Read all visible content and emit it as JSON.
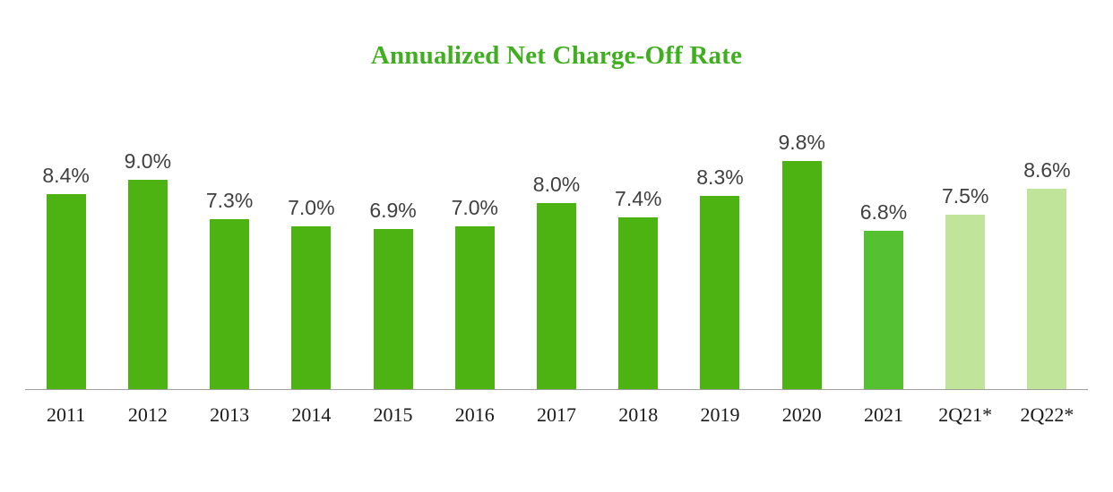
{
  "chart_data": {
    "type": "bar",
    "title": "Annualized Net Charge-Off Rate",
    "title_color": "#3fae1f",
    "xlabel": "",
    "ylabel": "",
    "ylim": [
      0,
      10
    ],
    "grid": false,
    "legend": "none",
    "categories": [
      "2011",
      "2012",
      "2013",
      "2014",
      "2015",
      "2016",
      "2017",
      "2018",
      "2019",
      "2020",
      "2021",
      "2Q21*",
      "2Q22*"
    ],
    "values": [
      8.4,
      9.0,
      7.3,
      7.0,
      6.9,
      7.0,
      8.0,
      7.4,
      8.3,
      9.8,
      6.8,
      7.5,
      8.6
    ],
    "points": [
      {
        "category": "2011",
        "value": 8.4,
        "label": "8.4%",
        "color": "#4db312"
      },
      {
        "category": "2012",
        "value": 9.0,
        "label": "9.0%",
        "color": "#4db312"
      },
      {
        "category": "2013",
        "value": 7.3,
        "label": "7.3%",
        "color": "#4db312"
      },
      {
        "category": "2014",
        "value": 7.0,
        "label": "7.0%",
        "color": "#4db312"
      },
      {
        "category": "2015",
        "value": 6.9,
        "label": "6.9%",
        "color": "#4db312"
      },
      {
        "category": "2016",
        "value": 7.0,
        "label": "7.0%",
        "color": "#4db312"
      },
      {
        "category": "2017",
        "value": 8.0,
        "label": "8.0%",
        "color": "#4db312"
      },
      {
        "category": "2018",
        "value": 7.4,
        "label": "7.4%",
        "color": "#4db312"
      },
      {
        "category": "2019",
        "value": 8.3,
        "label": "8.3%",
        "color": "#4db312"
      },
      {
        "category": "2020",
        "value": 9.8,
        "label": "9.8%",
        "color": "#4db312"
      },
      {
        "category": "2021",
        "value": 6.8,
        "label": "6.8%",
        "color": "#54c032"
      },
      {
        "category": "2Q21*",
        "value": 7.5,
        "label": "7.5%",
        "color": "#bfe49a"
      },
      {
        "category": "2Q22*",
        "value": 8.6,
        "label": "8.6%",
        "color": "#bfe49a"
      }
    ]
  }
}
